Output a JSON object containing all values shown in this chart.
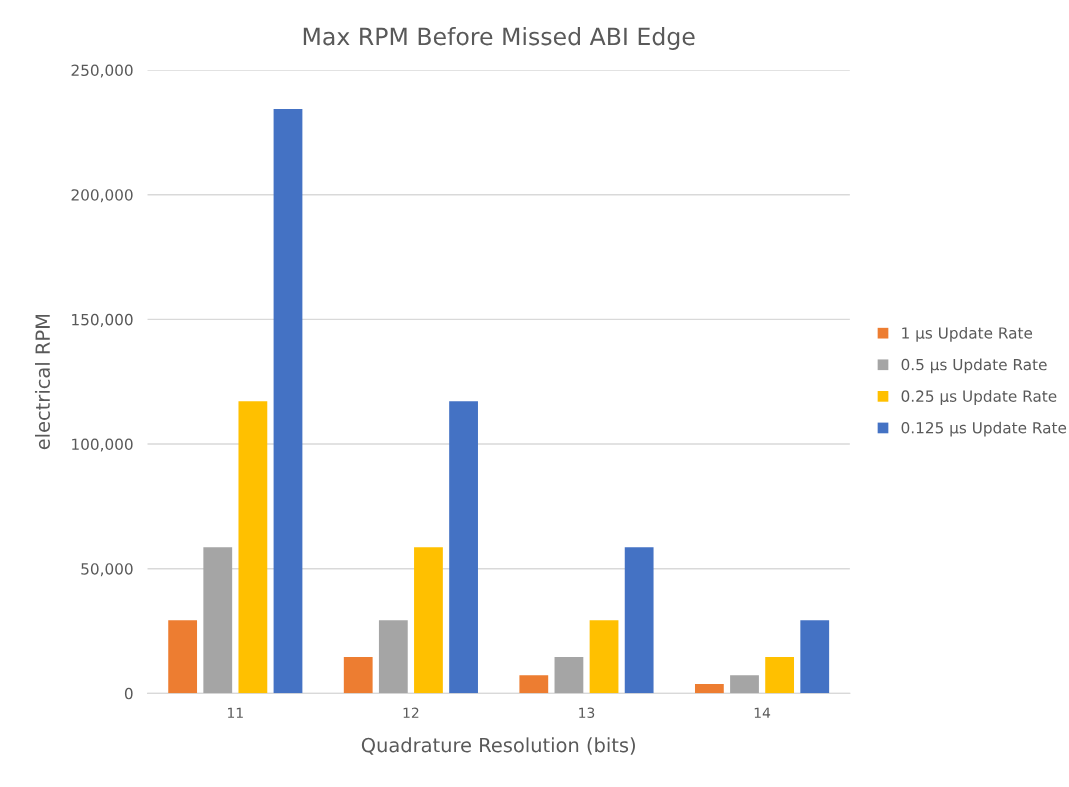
{
  "chart_data": {
    "type": "bar",
    "title": "Max RPM Before Missed ABI Edge",
    "xlabel": "Quadrature Resolution (bits)",
    "ylabel": "electrical RPM",
    "categories": [
      "11",
      "12",
      "13",
      "14"
    ],
    "series": [
      {
        "name": "1 µs Update Rate",
        "color": "#ed7d31",
        "values": [
          29300,
          14600,
          7300,
          3700
        ]
      },
      {
        "name": "0.5 µs Update Rate",
        "color": "#a5a5a5",
        "values": [
          58600,
          29300,
          14600,
          7300
        ]
      },
      {
        "name": "0.25 µs Update Rate",
        "color": "#ffc000",
        "values": [
          117200,
          58600,
          29300,
          14600
        ]
      },
      {
        "name": "0.125 µs Update Rate",
        "color": "#4472c4",
        "values": [
          234400,
          117200,
          58600,
          29300
        ]
      }
    ],
    "ylim": [
      0,
      250000
    ],
    "yticks": [
      {
        "value": 0,
        "label": "0"
      },
      {
        "value": 50000,
        "label": "50,000"
      },
      {
        "value": 100000,
        "label": "100,000"
      },
      {
        "value": 150000,
        "label": "150,000"
      },
      {
        "value": 200000,
        "label": "200,000"
      },
      {
        "value": 250000,
        "label": "250,000"
      }
    ],
    "grid": "y",
    "legend": "right"
  }
}
